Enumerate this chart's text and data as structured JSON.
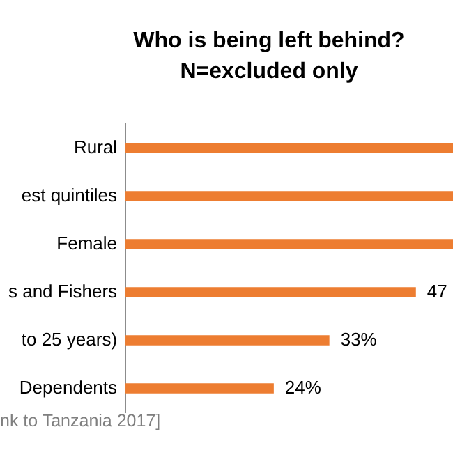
{
  "chart_data": {
    "type": "bar",
    "orientation": "horizontal",
    "title": "Who is being left behind?\nN=excluded only",
    "categories": [
      "Rural",
      "est quintiles",
      "Female",
      "s and Fishers",
      "to 25 years)",
      "Dependents"
    ],
    "values": [
      53,
      53,
      53,
      47,
      33,
      24
    ],
    "value_labels": [
      null,
      null,
      null,
      "47",
      "33%",
      "24%"
    ],
    "color": "#ed7d31",
    "tick_labels": "y",
    "annotations": [
      "nk to Tanzania 2017]"
    ]
  }
}
